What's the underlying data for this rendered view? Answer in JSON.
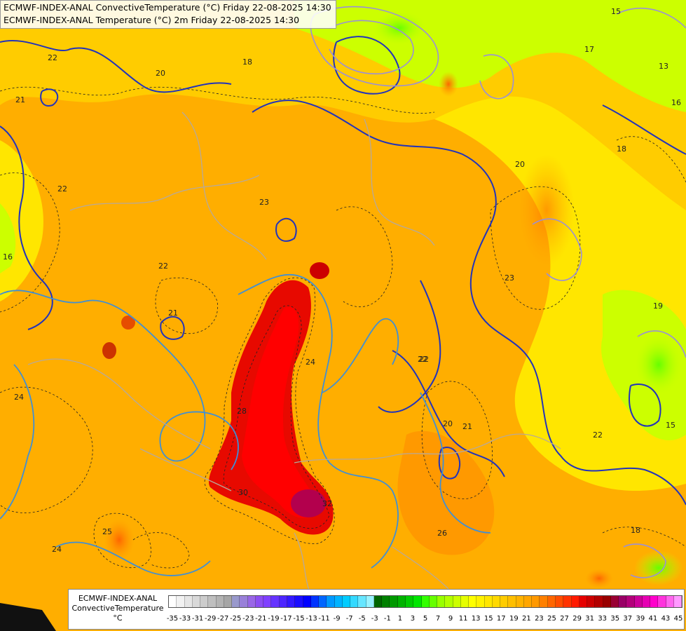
{
  "header": {
    "line1": "ECMWF-INDEX-ANAL ConvectiveTemperature (°C) Friday 22-08-2025 14:30",
    "line2": "ECMWF-INDEX-ANAL Temperature (°C) 2m Friday 22-08-2025 14:30"
  },
  "legend": {
    "model": "ECMWF-INDEX-ANAL",
    "parameter": "ConvectiveTemperature",
    "unit": "°C",
    "ticks": [
      "-35",
      "-33",
      "-31",
      "-29",
      "-27",
      "-25",
      "-23",
      "-21",
      "-19",
      "-17",
      "-15",
      "-13",
      "-11",
      "-9",
      "-7",
      "-5",
      "-3",
      "-1",
      "1",
      "3",
      "5",
      "7",
      "9",
      "11",
      "13",
      "15",
      "17",
      "19",
      "21",
      "23",
      "25",
      "27",
      "29",
      "31",
      "33",
      "35",
      "37",
      "39",
      "41",
      "43",
      "45"
    ],
    "colors": [
      "#ffffff",
      "#f2f2f2",
      "#e6e6e6",
      "#d9d9d9",
      "#cccccc",
      "#bfbfbf",
      "#b3b3b3",
      "#a6a6a6",
      "#9999cc",
      "#9980d9",
      "#9966e6",
      "#8c4df2",
      "#8040ff",
      "#6633ff",
      "#4d26ff",
      "#3319ff",
      "#1a0dff",
      "#0000ff",
      "#0033ff",
      "#0066ff",
      "#0099ff",
      "#00b3ff",
      "#00ccff",
      "#33d9ff",
      "#66e6ff",
      "#99f2ff",
      "#006600",
      "#008000",
      "#009900",
      "#00b300",
      "#00cc00",
      "#00e600",
      "#33ff00",
      "#66ff00",
      "#99ff00",
      "#b3ff00",
      "#ccff00",
      "#e6ff00",
      "#ffff00",
      "#fff200",
      "#ffe600",
      "#ffd900",
      "#ffcc00",
      "#ffbf00",
      "#ffb300",
      "#ffa600",
      "#ff9900",
      "#ff8000",
      "#ff6600",
      "#ff4d00",
      "#ff3300",
      "#ff1a00",
      "#e60000",
      "#cc0000",
      "#b30000",
      "#990000",
      "#990033",
      "#990066",
      "#b3007a",
      "#cc0099",
      "#e600b3",
      "#ff00cc",
      "#ff33dd",
      "#ff66ee",
      "#ff99ff"
    ]
  },
  "map": {
    "isotherm_labels": [
      {
        "text": "22",
        "blue": false
      },
      {
        "text": "21",
        "blue": false
      },
      {
        "text": "20",
        "blue": false
      },
      {
        "text": "18",
        "blue": false
      },
      {
        "text": "22",
        "blue": false
      },
      {
        "text": "23",
        "blue": false
      },
      {
        "text": "22",
        "blue": false
      },
      {
        "text": "21",
        "blue": false
      },
      {
        "text": "24",
        "blue": false
      },
      {
        "text": "28",
        "blue": false
      },
      {
        "text": "30",
        "blue": false
      },
      {
        "text": "32",
        "blue": false
      },
      {
        "text": "25",
        "blue": false
      },
      {
        "text": "24",
        "blue": false
      },
      {
        "text": "26",
        "blue": false
      },
      {
        "text": "22",
        "blue": false
      },
      {
        "text": "23",
        "blue": false
      },
      {
        "text": "20",
        "blue": false
      },
      {
        "text": "19",
        "blue": false
      },
      {
        "text": "17",
        "blue": false
      },
      {
        "text": "18",
        "blue": false
      },
      {
        "text": "16",
        "blue": false
      },
      {
        "text": "15",
        "blue": false
      },
      {
        "text": "13",
        "blue": false
      },
      {
        "text": "21",
        "blue": false
      },
      {
        "text": "16",
        "blue": false
      },
      {
        "text": "24",
        "blue": false
      },
      {
        "text": "22",
        "blue": false
      },
      {
        "text": "18",
        "blue": false
      },
      {
        "text": "15",
        "blue": false
      },
      {
        "text": "22",
        "blue": false
      },
      {
        "text": "20",
        "blue": false
      }
    ]
  }
}
